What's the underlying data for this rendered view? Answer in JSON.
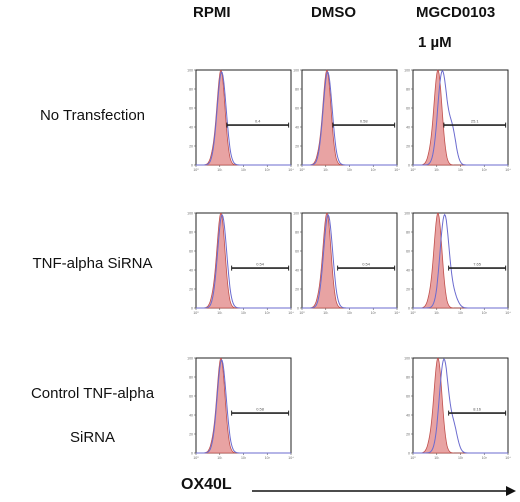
{
  "columns": [
    "RPMI",
    "DMSO",
    "MGCD0103"
  ],
  "column_sub": "1 µM",
  "rows": [
    "No Transfection",
    "TNF-alpha SiRNA",
    "Control TNF-alpha SiRNA"
  ],
  "x_axis_label": "OX40L",
  "chart_data": {
    "type": "histogram-grid",
    "x_scale": "log",
    "xlim": [
      1,
      10000
    ],
    "ylim": [
      0,
      100
    ],
    "yticks": [
      0,
      20,
      40,
      60,
      80,
      100
    ],
    "xticks": [
      "10⁰",
      "10¹",
      "10²",
      "10³",
      "10⁴"
    ],
    "series_colors": {
      "control_fill": "#e8a3a3",
      "control_line": "#c0504d",
      "stain_line": "#6b6bcf"
    },
    "panels": [
      {
        "row": 0,
        "col": 0,
        "gate_label": "0.4",
        "stain_shift": 0.0,
        "stain_shoulder": 0.0,
        "gate_x": [
          1.3,
          3.9
        ]
      },
      {
        "row": 0,
        "col": 1,
        "gate_label": "0.58",
        "stain_shift": 0.0,
        "stain_shoulder": 0.0,
        "gate_x": [
          1.3,
          3.9
        ]
      },
      {
        "row": 0,
        "col": 2,
        "gate_label": "25.1",
        "stain_shift": 0.15,
        "stain_shoulder": 0.35,
        "gate_x": [
          1.3,
          3.9
        ]
      },
      {
        "row": 1,
        "col": 0,
        "gate_label": "0.54",
        "stain_shift": 0.02,
        "stain_shoulder": 0.0,
        "gate_x": [
          1.5,
          3.9
        ]
      },
      {
        "row": 1,
        "col": 1,
        "gate_label": "0.54",
        "stain_shift": 0.02,
        "stain_shoulder": 0.0,
        "gate_x": [
          1.5,
          3.9
        ]
      },
      {
        "row": 1,
        "col": 2,
        "gate_label": "7.65",
        "stain_shift": 0.25,
        "stain_shoulder": 0.1,
        "gate_x": [
          1.5,
          3.9
        ]
      },
      {
        "row": 2,
        "col": 0,
        "gate_label": "0.58",
        "stain_shift": 0.0,
        "stain_shoulder": 0.0,
        "gate_x": [
          1.5,
          3.9
        ]
      },
      {
        "row": 2,
        "col": 2,
        "gate_label": "8.16",
        "stain_shift": 0.22,
        "stain_shoulder": 0.25,
        "gate_x": [
          1.5,
          3.9
        ]
      }
    ]
  }
}
